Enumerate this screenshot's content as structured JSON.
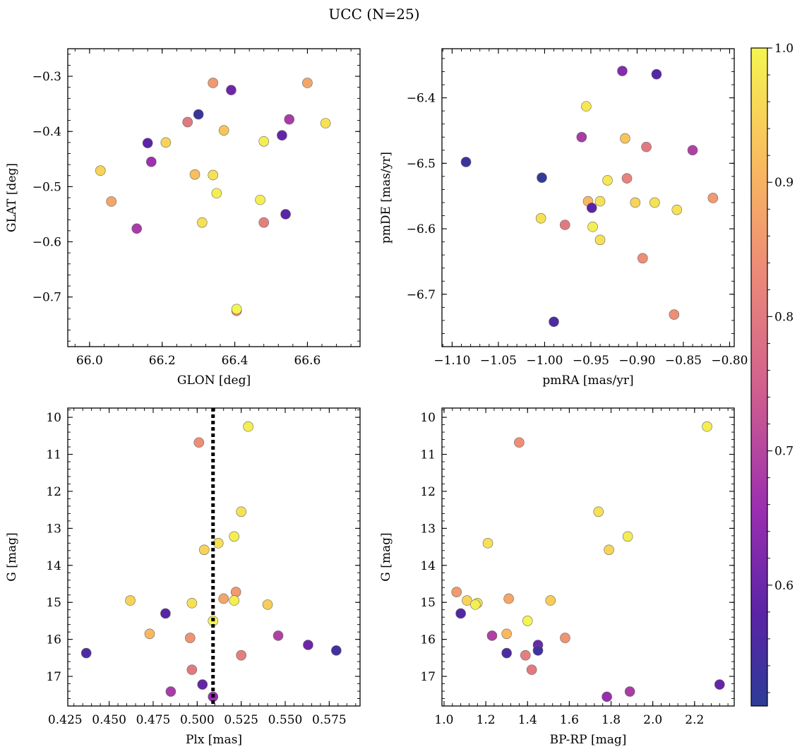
{
  "figure": {
    "title": "UCC (N=25)"
  },
  "colorbar": {
    "min": 0.51,
    "max": 1.0,
    "ticks": [
      0.6,
      0.7,
      0.8,
      0.9,
      1.0
    ],
    "tick_labels": [
      "0.6",
      "0.7",
      "0.8",
      "0.9",
      "1.0"
    ],
    "colormap": "plasma"
  },
  "chart_data": [
    {
      "type": "scatter",
      "id": "glon-glat",
      "xlabel": "GLON [deg]",
      "ylabel": "GLAT [deg]",
      "xlim": [
        65.94,
        66.745
      ],
      "ylim": [
        -0.79,
        -0.25
      ],
      "y_inverted": false,
      "xticks": [
        66.0,
        66.2,
        66.4,
        66.6
      ],
      "xtick_labels": [
        "66.0",
        "66.2",
        "66.4",
        "66.6"
      ],
      "yticks": [
        -0.3,
        -0.4,
        -0.5,
        -0.6,
        -0.7
      ],
      "ytick_labels": [
        "−0.3",
        "−0.4",
        "−0.5",
        "−0.6",
        "−0.7"
      ],
      "x": [
        66.34,
        66.39,
        66.3,
        66.6,
        66.16,
        66.21,
        66.27,
        66.37,
        66.55,
        66.65,
        66.48,
        66.53,
        66.17,
        66.03,
        66.29,
        66.34,
        66.35,
        66.06,
        66.47,
        66.31,
        66.54,
        66.48,
        66.13,
        66.405,
        66.405
      ],
      "y": [
        -0.312,
        -0.325,
        -0.369,
        -0.312,
        -0.421,
        -0.42,
        -0.383,
        -0.398,
        -0.378,
        -0.385,
        -0.418,
        -0.407,
        -0.455,
        -0.471,
        -0.478,
        -0.479,
        -0.512,
        -0.527,
        -0.524,
        -0.565,
        -0.55,
        -0.565,
        -0.576,
        -0.725,
        -0.722
      ],
      "c": [
        0.86,
        0.6,
        0.53,
        0.88,
        0.58,
        0.95,
        0.8,
        0.93,
        0.68,
        0.97,
        0.99,
        0.59,
        0.66,
        0.95,
        0.92,
        0.97,
        0.99,
        0.88,
        0.99,
        0.97,
        0.58,
        0.81,
        0.68,
        0.83,
        1.0
      ]
    },
    {
      "type": "scatter",
      "id": "pmra-pmde",
      "xlabel": "pmRA [mas/yr]",
      "ylabel": "pmDE [mas/yr]",
      "xlim": [
        -1.111,
        -0.795
      ],
      "ylim": [
        -6.78,
        -6.325
      ],
      "y_inverted": false,
      "xticks": [
        -1.1,
        -1.05,
        -1.0,
        -0.95,
        -0.9,
        -0.85,
        -0.8
      ],
      "xtick_labels": [
        "−1.10",
        "−1.05",
        "−1.00",
        "−0.95",
        "−0.90",
        "−0.85",
        "−0.80"
      ],
      "yticks": [
        -6.4,
        -6.5,
        -6.6,
        -6.7
      ],
      "ytick_labels": [
        "−6.4",
        "−6.5",
        "−6.6",
        "−6.7"
      ],
      "x": [
        -0.916,
        -0.879,
        -0.955,
        -0.96,
        -0.913,
        -0.89,
        -0.84,
        -1.085,
        -1.003,
        -0.932,
        -0.911,
        -0.953,
        -0.94,
        -0.902,
        -0.881,
        -0.857,
        -0.818,
        -1.004,
        -0.949,
        -0.978,
        -0.948,
        -0.94,
        -0.894,
        -0.86,
        -0.99
      ],
      "y": [
        -6.359,
        -6.364,
        -6.413,
        -6.46,
        -6.462,
        -6.475,
        -6.48,
        -6.498,
        -6.522,
        -6.526,
        -6.523,
        -6.558,
        -6.558,
        -6.56,
        -6.56,
        -6.571,
        -6.553,
        -6.584,
        -6.568,
        -6.594,
        -6.597,
        -6.617,
        -6.645,
        -6.731,
        -6.742
      ],
      "c": [
        0.63,
        0.57,
        0.98,
        0.68,
        0.93,
        0.8,
        0.69,
        0.53,
        0.52,
        0.98,
        0.82,
        0.91,
        0.97,
        0.95,
        0.97,
        0.97,
        0.86,
        0.97,
        0.58,
        0.8,
        0.99,
        0.97,
        0.84,
        0.84,
        0.56
      ]
    },
    {
      "type": "scatter",
      "id": "plx-g",
      "xlabel": "Plx [mas]",
      "ylabel": "G [mag]",
      "xlim": [
        0.4265,
        0.5925
      ],
      "ylim": [
        9.75,
        17.8
      ],
      "y_inverted": true,
      "xticks": [
        0.425,
        0.45,
        0.475,
        0.5,
        0.525,
        0.55,
        0.575
      ],
      "xtick_labels": [
        "0.425",
        "0.450",
        "0.475",
        "0.500",
        "0.525",
        "0.550",
        "0.575"
      ],
      "yticks": [
        10,
        11,
        12,
        13,
        14,
        15,
        16,
        17
      ],
      "ytick_labels": [
        "10",
        "11",
        "12",
        "13",
        "14",
        "15",
        "16",
        "17"
      ],
      "vline": 0.509,
      "x": [
        0.529,
        0.501,
        0.525,
        0.521,
        0.512,
        0.504,
        0.522,
        0.462,
        0.497,
        0.521,
        0.515,
        0.54,
        0.482,
        0.509,
        0.473,
        0.496,
        0.546,
        0.563,
        0.579,
        0.437,
        0.525,
        0.497,
        0.485,
        0.503,
        0.509
      ],
      "y": [
        10.25,
        10.68,
        12.55,
        13.22,
        13.4,
        13.58,
        14.72,
        14.95,
        15.02,
        14.95,
        14.9,
        15.06,
        15.3,
        15.5,
        15.85,
        15.96,
        15.9,
        16.15,
        16.3,
        16.37,
        16.43,
        16.82,
        17.41,
        17.22,
        17.55
      ],
      "c": [
        0.99,
        0.84,
        0.97,
        0.99,
        0.97,
        0.95,
        0.86,
        0.95,
        0.97,
        0.99,
        0.88,
        0.94,
        0.57,
        1.0,
        0.91,
        0.85,
        0.69,
        0.6,
        0.54,
        0.56,
        0.81,
        0.8,
        0.68,
        0.59,
        0.65
      ]
    },
    {
      "type": "scatter",
      "id": "bprp-g",
      "xlabel": "BP-RP [mag]",
      "ylabel": "G [mag]",
      "xlim": [
        0.99,
        2.39
      ],
      "ylim": [
        9.75,
        17.8
      ],
      "y_inverted": true,
      "xticks": [
        1.0,
        1.2,
        1.4,
        1.6,
        1.8,
        2.0,
        2.2
      ],
      "xtick_labels": [
        "1.0",
        "1.2",
        "1.4",
        "1.6",
        "1.8",
        "2.0",
        "2.2"
      ],
      "yticks": [
        10,
        11,
        12,
        13,
        14,
        15,
        16,
        17
      ],
      "ytick_labels": [
        "10",
        "11",
        "12",
        "13",
        "14",
        "15",
        "16",
        "17"
      ],
      "x": [
        2.26,
        1.36,
        1.74,
        1.88,
        1.21,
        1.79,
        1.06,
        1.11,
        1.16,
        1.15,
        1.31,
        1.51,
        1.08,
        1.4,
        1.3,
        1.58,
        1.23,
        1.45,
        1.45,
        1.3,
        1.39,
        1.42,
        1.89,
        2.32,
        1.78
      ],
      "y": [
        10.25,
        10.68,
        12.55,
        13.22,
        13.4,
        13.58,
        14.72,
        14.95,
        15.02,
        15.06,
        14.9,
        14.95,
        15.3,
        15.5,
        15.85,
        15.96,
        15.9,
        16.15,
        16.3,
        16.37,
        16.43,
        16.82,
        17.41,
        17.22,
        17.55
      ],
      "c": [
        0.99,
        0.84,
        0.97,
        0.99,
        0.97,
        0.95,
        0.86,
        0.95,
        0.97,
        0.99,
        0.88,
        0.94,
        0.57,
        1.0,
        0.91,
        0.85,
        0.69,
        0.6,
        0.54,
        0.56,
        0.81,
        0.8,
        0.68,
        0.59,
        0.65
      ]
    }
  ]
}
